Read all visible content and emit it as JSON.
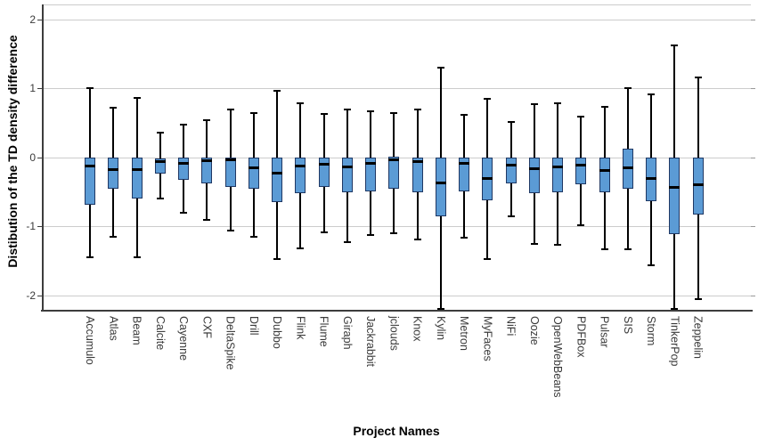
{
  "figure": {
    "background": "#ffffff",
    "colors": {
      "box_fill": "#5b9bd5",
      "box_border": "#1f3864",
      "median": "#000000",
      "whisker": "#000000",
      "gridline": "#cccccc",
      "axis": "#3d3d3d",
      "right_tick": "#999999",
      "tick_text": "#3a3a3a",
      "title_text": "#000000"
    }
  },
  "chart_data": {
    "type": "boxplot",
    "title": "",
    "xlabel": "Project Names",
    "ylabel": "Distibution of the TD density difference",
    "ylim": [
      -2.21,
      2.22
    ],
    "yticks": [
      2,
      1,
      0,
      -1,
      -2
    ],
    "grid": true,
    "legend": false,
    "categories": [
      "Accumulo",
      "Atlas",
      "Beam",
      "Calcite",
      "Cayenne",
      "CXF",
      "DeltaSpike",
      "Drill",
      "Dubbo",
      "Flink",
      "Flume",
      "Giraph",
      "Jackrabbit",
      "jclouds",
      "Knox",
      "Kylin",
      "Metron",
      "MyFaces",
      "NiFi",
      "Oozie",
      "OpenWebBeans",
      "PDFBox",
      "Pulsar",
      "SIS",
      "Storm",
      "TinkerPop",
      "Zeppelin"
    ],
    "series": [
      {
        "name": "Accumulo",
        "whisker_low": -1.45,
        "q1": -0.68,
        "median": -0.13,
        "q3": 0.0,
        "whisker_high": 1.0
      },
      {
        "name": "Atlas",
        "whisker_low": -1.15,
        "q1": -0.46,
        "median": -0.17,
        "q3": 0.0,
        "whisker_high": 0.72
      },
      {
        "name": "Beam",
        "whisker_low": -1.45,
        "q1": -0.59,
        "median": -0.17,
        "q3": 0.0,
        "whisker_high": 0.87
      },
      {
        "name": "Calcite",
        "whisker_low": -0.59,
        "q1": -0.24,
        "median": -0.06,
        "q3": -0.01,
        "whisker_high": 0.36
      },
      {
        "name": "Cayenne",
        "whisker_low": -0.8,
        "q1": -0.33,
        "median": -0.08,
        "q3": 0.0,
        "whisker_high": 0.47
      },
      {
        "name": "CXF",
        "whisker_low": -0.9,
        "q1": -0.37,
        "median": -0.05,
        "q3": 0.0,
        "whisker_high": 0.54
      },
      {
        "name": "DeltaSpike",
        "whisker_low": -1.06,
        "q1": -0.43,
        "median": -0.03,
        "q3": 0.0,
        "whisker_high": 0.7
      },
      {
        "name": "Drill",
        "whisker_low": -1.15,
        "q1": -0.46,
        "median": -0.15,
        "q3": 0.0,
        "whisker_high": 0.65
      },
      {
        "name": "Dubbo",
        "whisker_low": -1.48,
        "q1": -0.65,
        "median": -0.23,
        "q3": 0.0,
        "whisker_high": 0.97
      },
      {
        "name": "Flink",
        "whisker_low": -1.32,
        "q1": -0.52,
        "median": -0.12,
        "q3": 0.0,
        "whisker_high": 0.78
      },
      {
        "name": "Flume",
        "whisker_low": -1.09,
        "q1": -0.43,
        "median": -0.1,
        "q3": 0.0,
        "whisker_high": 0.63
      },
      {
        "name": "Giraph",
        "whisker_low": -1.23,
        "q1": -0.5,
        "median": -0.14,
        "q3": 0.0,
        "whisker_high": 0.7
      },
      {
        "name": "Jackrabbit",
        "whisker_low": -1.13,
        "q1": -0.49,
        "median": -0.09,
        "q3": 0.0,
        "whisker_high": 0.67
      },
      {
        "name": "jclouds",
        "whisker_low": -1.1,
        "q1": -0.45,
        "median": -0.03,
        "q3": 0.01,
        "whisker_high": 0.65
      },
      {
        "name": "Knox",
        "whisker_low": -1.19,
        "q1": -0.5,
        "median": -0.06,
        "q3": 0.0,
        "whisker_high": 0.7
      },
      {
        "name": "Kylin",
        "whisker_low": -2.2,
        "q1": -0.86,
        "median": -0.37,
        "q3": 0.0,
        "whisker_high": 1.3
      },
      {
        "name": "Metron",
        "whisker_low": -1.17,
        "q1": -0.49,
        "median": -0.09,
        "q3": 0.0,
        "whisker_high": 0.62
      },
      {
        "name": "MyFaces",
        "whisker_low": -1.47,
        "q1": -0.62,
        "median": -0.3,
        "q3": 0.0,
        "whisker_high": 0.85
      },
      {
        "name": "NiFi",
        "whisker_low": -0.85,
        "q1": -0.37,
        "median": -0.11,
        "q3": 0.0,
        "whisker_high": 0.51
      },
      {
        "name": "Oozie",
        "whisker_low": -1.25,
        "q1": -0.52,
        "median": -0.16,
        "q3": 0.0,
        "whisker_high": 0.77
      },
      {
        "name": "OpenWebBeans",
        "whisker_low": -1.27,
        "q1": -0.51,
        "median": -0.14,
        "q3": 0.0,
        "whisker_high": 0.79
      },
      {
        "name": "PDFBox",
        "whisker_low": -0.98,
        "q1": -0.39,
        "median": -0.11,
        "q3": 0.0,
        "whisker_high": 0.59
      },
      {
        "name": "Pulsar",
        "whisker_low": -1.33,
        "q1": -0.51,
        "median": -0.19,
        "q3": 0.0,
        "whisker_high": 0.74
      },
      {
        "name": "SIS",
        "whisker_low": -1.33,
        "q1": -0.46,
        "median": -0.15,
        "q3": 0.13,
        "whisker_high": 1.0
      },
      {
        "name": "Storm",
        "whisker_low": -1.57,
        "q1": -0.64,
        "median": -0.3,
        "q3": 0.0,
        "whisker_high": 0.91
      },
      {
        "name": "TinkerPop",
        "whisker_low": -2.2,
        "q1": -1.11,
        "median": -0.43,
        "q3": 0.0,
        "whisker_high": 1.63
      },
      {
        "name": "Zeppelin",
        "whisker_low": -2.05,
        "q1": -0.83,
        "median": -0.39,
        "q3": 0.0,
        "whisker_high": 1.16
      }
    ]
  }
}
